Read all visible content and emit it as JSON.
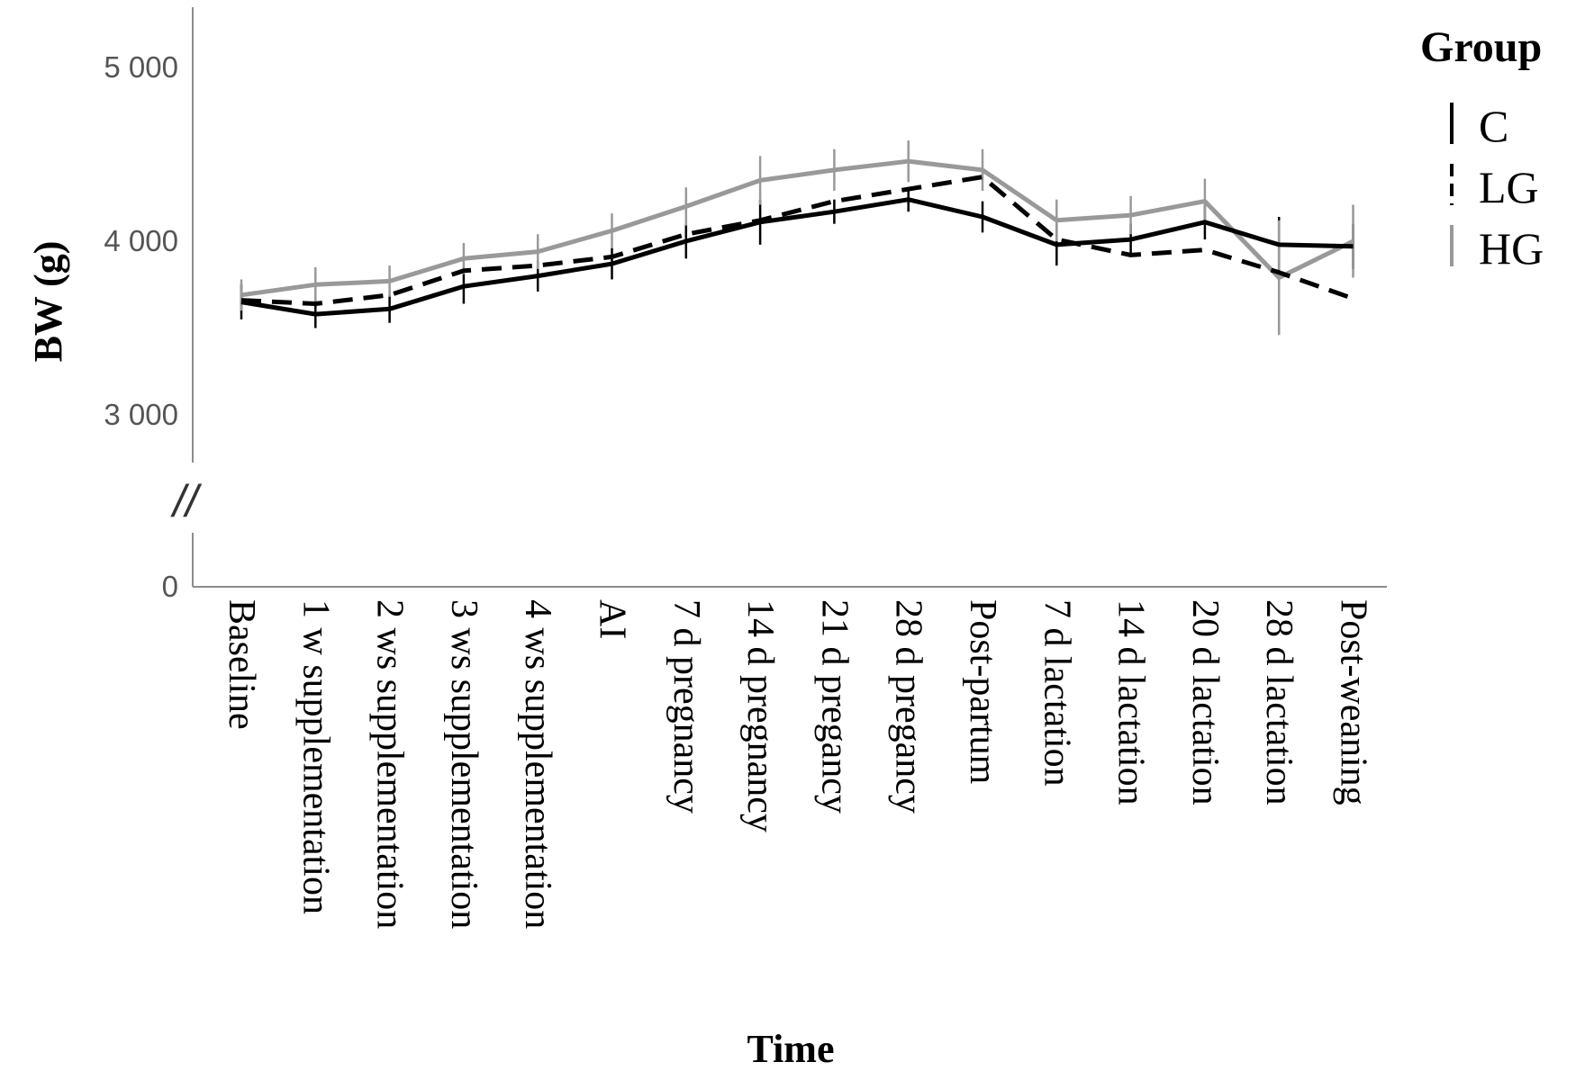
{
  "chart_data": {
    "type": "line",
    "title": "",
    "xlabel": "Time",
    "ylabel": "BW (g)",
    "ylim": [
      0,
      5300
    ],
    "y_ticks": [
      {
        "value": 0,
        "label": "0"
      },
      {
        "value": 3000,
        "label": "3 000"
      },
      {
        "value": 4000,
        "label": "4 000"
      },
      {
        "value": 5000,
        "label": "5 000"
      }
    ],
    "axis_break_label": "//",
    "categories": [
      "Baseline",
      "1 w supplementation",
      "2 ws supplementation",
      "3 ws supplementation",
      "4 ws supplementation",
      "AI",
      "7 d pregnancy",
      "14 d pregnancy",
      "21 d pregancy",
      "28 d pregancy",
      "Post-partum",
      "7 d lactation",
      "14 d lactation",
      "20 d lactation",
      "28 d lactation",
      "Post-weaning"
    ],
    "legend_title": "Group",
    "legend_position": "top-right",
    "series": [
      {
        "name": "C",
        "color": "#000000",
        "dash": "solid",
        "values": [
          3650,
          3580,
          3610,
          3740,
          3800,
          3870,
          4000,
          4110,
          4170,
          4240,
          4140,
          3980,
          4010,
          4110,
          3980,
          3970
        ],
        "errors": [
          100,
          80,
          80,
          100,
          90,
          90,
          100,
          130,
          70,
          70,
          90,
          120,
          90,
          100,
          160,
          130
        ]
      },
      {
        "name": "LG",
        "color": "#000000",
        "dash": "dashed",
        "values": [
          3660,
          3640,
          3690,
          3830,
          3860,
          3910,
          4040,
          4120,
          4230,
          4300,
          4370,
          4010,
          3920,
          3950,
          3820,
          3670
        ]
      },
      {
        "name": "HG",
        "color": "#999999",
        "dash": "solid",
        "values": [
          3690,
          3750,
          3770,
          3900,
          3940,
          4060,
          4200,
          4350,
          4410,
          4460,
          4410,
          4120,
          4150,
          4230,
          3790,
          4000
        ],
        "errors": [
          90,
          100,
          90,
          90,
          100,
          100,
          110,
          140,
          120,
          120,
          120,
          120,
          110,
          130,
          330,
          210
        ]
      }
    ]
  }
}
